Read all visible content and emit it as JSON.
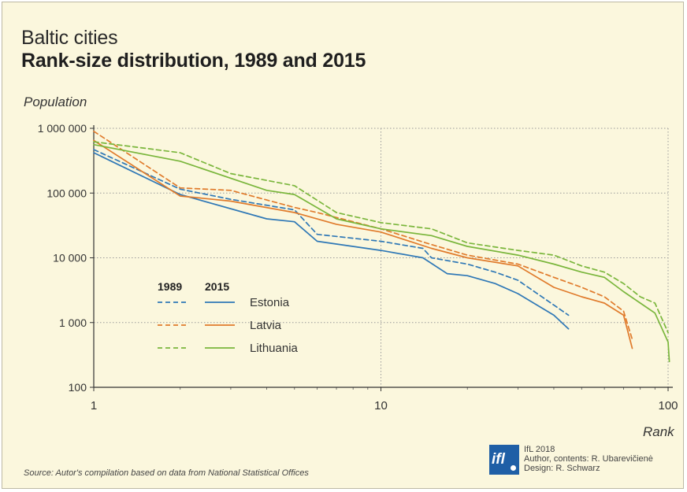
{
  "header": {
    "title": "Baltic cities",
    "subtitle": "Rank-size distribution, 1989 and 2015"
  },
  "axes": {
    "ylabel": "Population",
    "xlabel": "Rank"
  },
  "legend": {
    "year_headers": [
      "1989",
      "2015"
    ],
    "countries": [
      "Estonia",
      "Latvia",
      "Lithuania"
    ]
  },
  "footer": {
    "source": "Source: Autor's compilation based on data from National Statistical Offices",
    "logo_text": "ifl",
    "credits": [
      "IfL 2018",
      "Author, contents: R. Ubarevičienė",
      "Design: R. Schwarz"
    ]
  },
  "colors": {
    "estonia": "#2f78b6",
    "latvia": "#e07b2c",
    "lithuania": "#7ab63c",
    "background": "#fbf7dd",
    "grid": "#9a9a9a",
    "logo": "#1f5fa6"
  },
  "chart_data": {
    "type": "line",
    "title": "Rank-size distribution, 1989 and 2015",
    "xlabel": "Rank",
    "ylabel": "Population",
    "xscale": "log",
    "yscale": "log",
    "xlim": [
      1,
      100
    ],
    "ylim": [
      100,
      1000000
    ],
    "x_ticks": [
      1,
      10,
      100
    ],
    "x_tick_labels": [
      "1",
      "10",
      "100"
    ],
    "y_ticks": [
      100,
      1000,
      10000,
      100000,
      1000000
    ],
    "y_tick_labels": [
      "100",
      "1 000",
      "10 000",
      "100 000",
      "1 000 000"
    ],
    "grid": "dotted at major ticks",
    "legend_position": "lower-left",
    "series": [
      {
        "name": "Estonia",
        "year": "1989",
        "style": "dashed",
        "color": "#2f78b6",
        "x": [
          1,
          2,
          3,
          5,
          6,
          10,
          14,
          15,
          20,
          25,
          30,
          45
        ],
        "y": [
          470000,
          115000,
          80000,
          55000,
          23000,
          18000,
          14000,
          10000,
          8000,
          6000,
          4500,
          1300
        ]
      },
      {
        "name": "Estonia",
        "year": "2015",
        "style": "solid",
        "color": "#2f78b6",
        "x": [
          1,
          2,
          4,
          5,
          6,
          10,
          14,
          17,
          20,
          25,
          30,
          40,
          45
        ],
        "y": [
          420000,
          95000,
          40000,
          36000,
          18000,
          13000,
          10000,
          5700,
          5300,
          4000,
          2800,
          1300,
          800
        ]
      },
      {
        "name": "Latvia",
        "year": "1989",
        "style": "dashed",
        "color": "#e07b2c",
        "x": [
          1,
          2,
          3,
          5,
          6,
          10,
          15,
          20,
          30,
          40,
          50,
          60,
          70,
          75
        ],
        "y": [
          900000,
          120000,
          110000,
          60000,
          50000,
          28000,
          16000,
          11000,
          8000,
          5000,
          3500,
          2500,
          1500,
          550
        ]
      },
      {
        "name": "Latvia",
        "year": "2015",
        "style": "solid",
        "color": "#e07b2c",
        "x": [
          1,
          2,
          3,
          5,
          7,
          10,
          15,
          20,
          30,
          40,
          50,
          60,
          70,
          75
        ],
        "y": [
          650000,
          90000,
          75000,
          50000,
          33000,
          25000,
          14000,
          10000,
          7500,
          3500,
          2500,
          2000,
          1300,
          400
        ]
      },
      {
        "name": "Lithuania",
        "year": "1989",
        "style": "dashed",
        "color": "#7ab63c",
        "x": [
          1,
          2,
          3,
          5,
          7,
          10,
          15,
          20,
          30,
          40,
          50,
          60,
          70,
          80,
          90,
          100
        ],
        "y": [
          620000,
          420000,
          200000,
          130000,
          50000,
          35000,
          28000,
          17000,
          13000,
          11000,
          7500,
          6000,
          4000,
          2500,
          2000,
          700
        ]
      },
      {
        "name": "Lithuania",
        "year": "2015",
        "style": "solid",
        "color": "#7ab63c",
        "x": [
          1,
          2,
          4,
          5,
          7,
          10,
          15,
          20,
          30,
          40,
          50,
          60,
          70,
          80,
          90,
          100,
          101
        ],
        "y": [
          560000,
          310000,
          110000,
          95000,
          40000,
          28000,
          22000,
          15000,
          11000,
          8000,
          6000,
          5000,
          3000,
          2000,
          1400,
          500,
          250
        ]
      }
    ]
  }
}
